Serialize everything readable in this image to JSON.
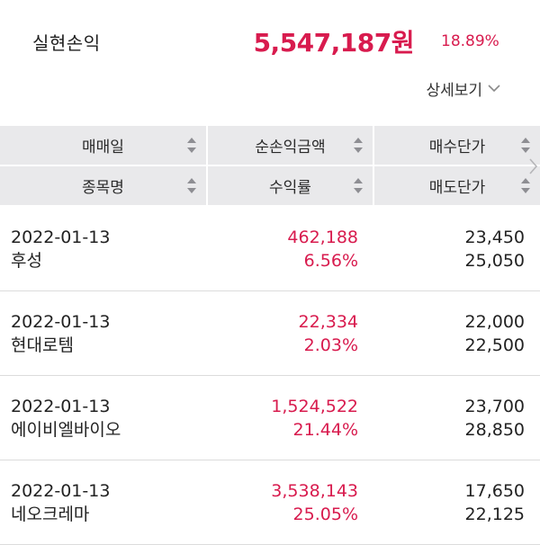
{
  "summary": {
    "label": "실현손익",
    "amount": "5,547,187원",
    "rate": "18.89%"
  },
  "detail_link": {
    "label": "상세보기",
    "icon": "chevron-down-icon"
  },
  "header": {
    "col1_top": "매매일",
    "col1_bottom": "종목명",
    "col2_top": "순손익금액",
    "col2_bottom": "수익률",
    "col3_top": "매수단가",
    "col3_bottom": "매도단가",
    "sort_icon": "sort-updown-icon"
  },
  "rows": [
    {
      "date": "2022-01-13",
      "name": "후성",
      "profit": "462,188",
      "rate": "6.56%",
      "buy_price": "23,450",
      "sell_price": "25,050"
    },
    {
      "date": "2022-01-13",
      "name": "현대로템",
      "profit": "22,334",
      "rate": "2.03%",
      "buy_price": "22,000",
      "sell_price": "22,500"
    },
    {
      "date": "2022-01-13",
      "name": "에이비엘바이오",
      "profit": "1,524,522",
      "rate": "21.44%",
      "buy_price": "23,700",
      "sell_price": "28,850"
    },
    {
      "date": "2022-01-13",
      "name": "네오크레마",
      "profit": "3,538,143",
      "rate": "25.05%",
      "buy_price": "17,650",
      "sell_price": "22,125"
    }
  ],
  "colors": {
    "accent": "#d81b4e",
    "header_bg": "#e9e9eb",
    "text": "#222222"
  }
}
